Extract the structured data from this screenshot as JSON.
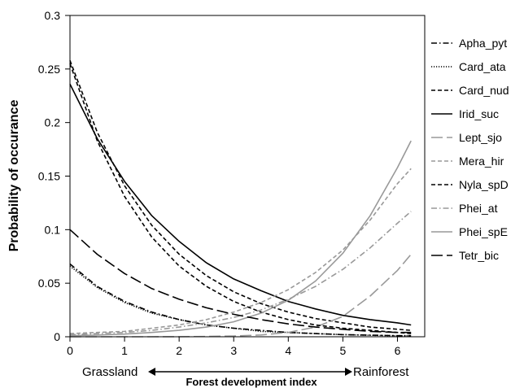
{
  "chart_data": {
    "type": "line",
    "title": "",
    "xlabel": "Forest development index",
    "ylabel": "Probability of occurance",
    "x_left_descriptor": "Grassland",
    "x_right_descriptor": "Rainforest",
    "xlim": [
      0,
      6.5
    ],
    "ylim": [
      0,
      0.3
    ],
    "x_ticks": [
      0,
      1,
      2,
      3,
      4,
      5,
      6
    ],
    "x_tick_labels": [
      "0",
      "1",
      "2",
      "3",
      "4",
      "5",
      "6"
    ],
    "y_ticks": [
      0,
      0.05,
      0.1,
      0.15,
      0.2,
      0.25,
      0.3
    ],
    "y_tick_labels": [
      "0",
      "0.05",
      "0.1",
      "0.15",
      "0.2",
      "0.25",
      "0.3"
    ],
    "grid": false,
    "legend_position": "right",
    "x": [
      0,
      0.5,
      1,
      1.5,
      2,
      2.5,
      3,
      3.5,
      4,
      4.5,
      5,
      5.5,
      6,
      6.25
    ],
    "series": [
      {
        "name": "Apha_pyt",
        "color": "#000000",
        "dash": "dash-dot",
        "values": [
          0.068,
          0.047,
          0.033,
          0.023,
          0.016,
          0.011,
          0.008,
          0.006,
          0.004,
          0.003,
          0.002,
          0.0015,
          0.001,
          0.001
        ]
      },
      {
        "name": "Card_ata",
        "color": "#000000",
        "dash": "dotted",
        "values": [
          0.066,
          0.046,
          0.032,
          0.022,
          0.016,
          0.011,
          0.008,
          0.005,
          0.004,
          0.003,
          0.002,
          0.0014,
          0.001,
          0.001
        ]
      },
      {
        "name": "Card_nud",
        "color": "#000000",
        "dash": "dashed",
        "values": [
          0.258,
          0.191,
          0.141,
          0.104,
          0.077,
          0.057,
          0.042,
          0.031,
          0.023,
          0.017,
          0.013,
          0.009,
          0.007,
          0.006
        ]
      },
      {
        "name": "Irid_suc",
        "color": "#000000",
        "dash": "solid",
        "values": [
          0.236,
          0.185,
          0.145,
          0.113,
          0.089,
          0.069,
          0.054,
          0.043,
          0.033,
          0.026,
          0.02,
          0.016,
          0.013,
          0.011
        ]
      },
      {
        "name": "Lept_sjo",
        "color": "#999999",
        "dash": "long-dash",
        "values": [
          0.0,
          0.0,
          0.0,
          0.0,
          0.0001,
          0.0003,
          0.0007,
          0.0017,
          0.004,
          0.009,
          0.019,
          0.038,
          0.062,
          0.077
        ]
      },
      {
        "name": "Mera_hir",
        "color": "#999999",
        "dash": "dashed",
        "values": [
          0.003,
          0.004,
          0.005,
          0.008,
          0.011,
          0.016,
          0.023,
          0.032,
          0.044,
          0.06,
          0.081,
          0.109,
          0.143,
          0.157
        ]
      },
      {
        "name": "Nyla_spD",
        "color": "#000000",
        "dash": "dashed",
        "values": [
          0.255,
          0.183,
          0.131,
          0.093,
          0.066,
          0.047,
          0.033,
          0.023,
          0.016,
          0.011,
          0.008,
          0.006,
          0.004,
          0.003
        ]
      },
      {
        "name": "Phei_at",
        "color": "#999999",
        "dash": "dash-dot",
        "values": [
          0.002,
          0.003,
          0.004,
          0.006,
          0.009,
          0.013,
          0.018,
          0.025,
          0.035,
          0.047,
          0.063,
          0.083,
          0.106,
          0.117
        ]
      },
      {
        "name": "Phei_spE",
        "color": "#999999",
        "dash": "solid",
        "values": [
          0.001,
          0.0016,
          0.0025,
          0.004,
          0.006,
          0.009,
          0.014,
          0.022,
          0.034,
          0.052,
          0.078,
          0.113,
          0.158,
          0.183
        ]
      },
      {
        "name": "Tetr_bic",
        "color": "#000000",
        "dash": "long-dash",
        "values": [
          0.1,
          0.077,
          0.059,
          0.045,
          0.035,
          0.027,
          0.021,
          0.016,
          0.012,
          0.009,
          0.007,
          0.005,
          0.004,
          0.004
        ]
      }
    ]
  }
}
